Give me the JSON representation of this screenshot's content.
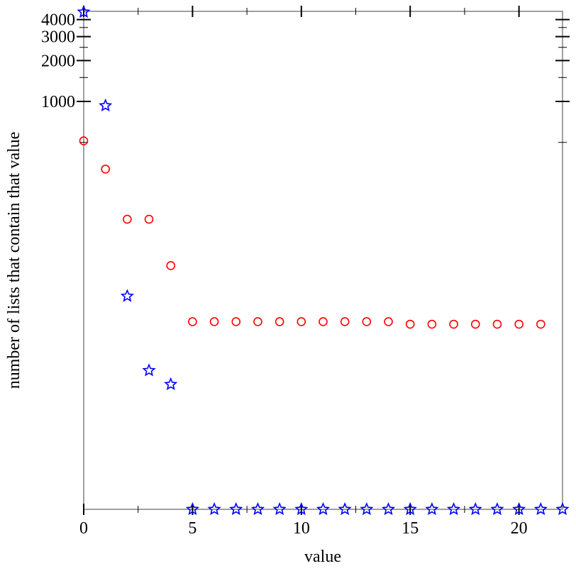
{
  "chart_data": {
    "type": "scatter",
    "title": "",
    "xlabel": "value",
    "ylabel": "number of lists that contain that value",
    "xlim": [
      0,
      22
    ],
    "ylim": [
      1,
      4600
    ],
    "y_scale": "log",
    "grid": false,
    "x_ticks": [
      0,
      5,
      10,
      15,
      20
    ],
    "x_tick_labels": [
      "0",
      "5",
      "10",
      "15",
      "20"
    ],
    "x_minor_ticks": [
      2.5,
      7.5,
      12.5,
      17.5
    ],
    "y_ticks": [
      1000,
      2000,
      3000,
      4000
    ],
    "y_tick_labels": [
      "1000",
      "2000",
      "3000",
      "4000"
    ],
    "y_minor_ticks": [
      500,
      1500,
      2500,
      3500
    ],
    "series": [
      {
        "marker": "circle",
        "color": "#ff0000",
        "x": [
          0,
          1,
          2,
          3,
          4,
          5,
          6,
          7,
          8,
          9,
          10,
          11,
          12,
          13,
          14,
          15,
          16,
          17,
          18,
          19,
          20,
          21
        ],
        "y": [
          513,
          318,
          136,
          136,
          62,
          24,
          24,
          24,
          24,
          24,
          24,
          24,
          24,
          24,
          24,
          23,
          23,
          23,
          23,
          23,
          23,
          23
        ]
      },
      {
        "marker": "star",
        "color": "#0000ff",
        "x": [
          0,
          1,
          2,
          3,
          4,
          5,
          6,
          7,
          8,
          9,
          10,
          11,
          12,
          13,
          14,
          15,
          16,
          17,
          18,
          19,
          20,
          21,
          22
        ],
        "y": [
          4550,
          931,
          37,
          10.5,
          8.3,
          1,
          1,
          1,
          1,
          1,
          1,
          1,
          1,
          1,
          1,
          1,
          1,
          1,
          1,
          1,
          1,
          1,
          1
        ]
      }
    ]
  }
}
